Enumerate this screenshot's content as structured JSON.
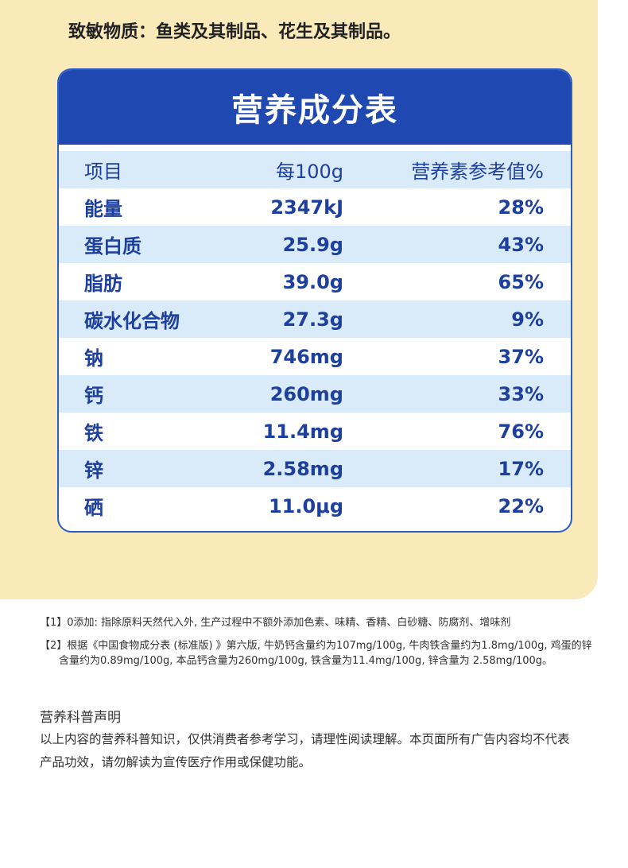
{
  "allergen_text": "致敏物质：鱼类及其制品、花生及其制品。",
  "table": {
    "title": "营养成分表",
    "headers": [
      "项目",
      "每100g",
      "营养素参考值%"
    ],
    "rows": [
      {
        "item": "能量",
        "per100g": "2347kJ",
        "nrv": "28%"
      },
      {
        "item": "蛋白质",
        "per100g": "25.9g",
        "nrv": "43%"
      },
      {
        "item": "脂肪",
        "per100g": "39.0g",
        "nrv": "65%"
      },
      {
        "item": "碳水化合物",
        "per100g": "27.3g",
        "nrv": "9%"
      },
      {
        "item": "钠",
        "per100g": "746mg",
        "nrv": "37%"
      },
      {
        "item": "钙",
        "per100g": "260mg",
        "nrv": "33%"
      },
      {
        "item": "铁",
        "per100g": "11.4mg",
        "nrv": "76%"
      },
      {
        "item": "锌",
        "per100g": "2.58mg",
        "nrv": "17%"
      },
      {
        "item": "硒",
        "per100g": "11.0μg",
        "nrv": "22%"
      }
    ]
  },
  "notes": [
    "【1】0添加: 指除原料天然代入外, 生产过程中不额外添加色素、味精、香精、白砂糖、防腐剂、增味剂",
    "【2】根据《中国食物成分表 (标准版) 》第六版, 牛奶钙含量约为107mg/100g, 牛肉铁含量约为1.8mg/100g, 鸡蛋的锌含量约为0.89mg/100g, 本品钙含量为260mg/100g, 铁含量为11.4mg/100g, 锌含量为 2.58mg/100g。"
  ],
  "disclaimer": {
    "title": "营养科普声明",
    "body": "以上内容的营养科普知识，仅供消费者参考学习，请理性阅读理解。本页面所有广告内容均不代表产品功效，请勿解读为宣传医疗作用或保健功能。"
  }
}
